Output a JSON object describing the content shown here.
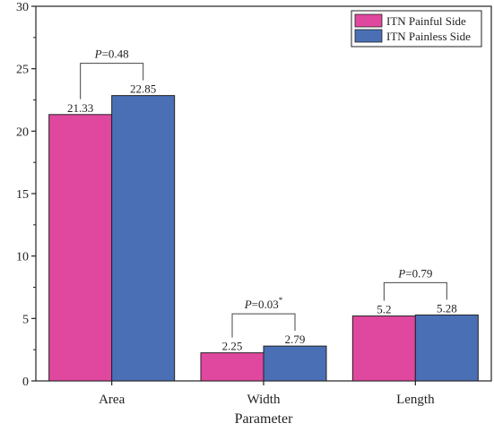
{
  "colors": {
    "painful": "#e0479e",
    "painless": "#4a6fb5"
  },
  "chart_data": {
    "type": "bar",
    "xlabel": "Parameter",
    "ylabel": "",
    "categories": [
      "Area",
      "Width",
      "Length"
    ],
    "ylim": [
      0,
      30
    ],
    "yticks": [
      "0",
      "5",
      "10",
      "15",
      "20",
      "25",
      "30"
    ],
    "series": [
      {
        "name": "ITN Painful Side",
        "values": [
          21.33,
          2.25,
          5.2
        ],
        "labels": [
          "21.33",
          "2.25",
          "5.2"
        ]
      },
      {
        "name": "ITN Painless Side",
        "values": [
          22.85,
          2.79,
          5.28
        ],
        "labels": [
          "22.85",
          "2.79",
          "5.28"
        ]
      }
    ],
    "annotations": [
      {
        "category": "Area",
        "p_prefix": "P",
        "p_value": "=0.48",
        "sup": ""
      },
      {
        "category": "Width",
        "p_prefix": "P",
        "p_value": "=0.03",
        "sup": "*"
      },
      {
        "category": "Length",
        "p_prefix": "P",
        "p_value": "=0.79",
        "sup": ""
      }
    ],
    "legend_position": "top-right",
    "grid": false
  }
}
